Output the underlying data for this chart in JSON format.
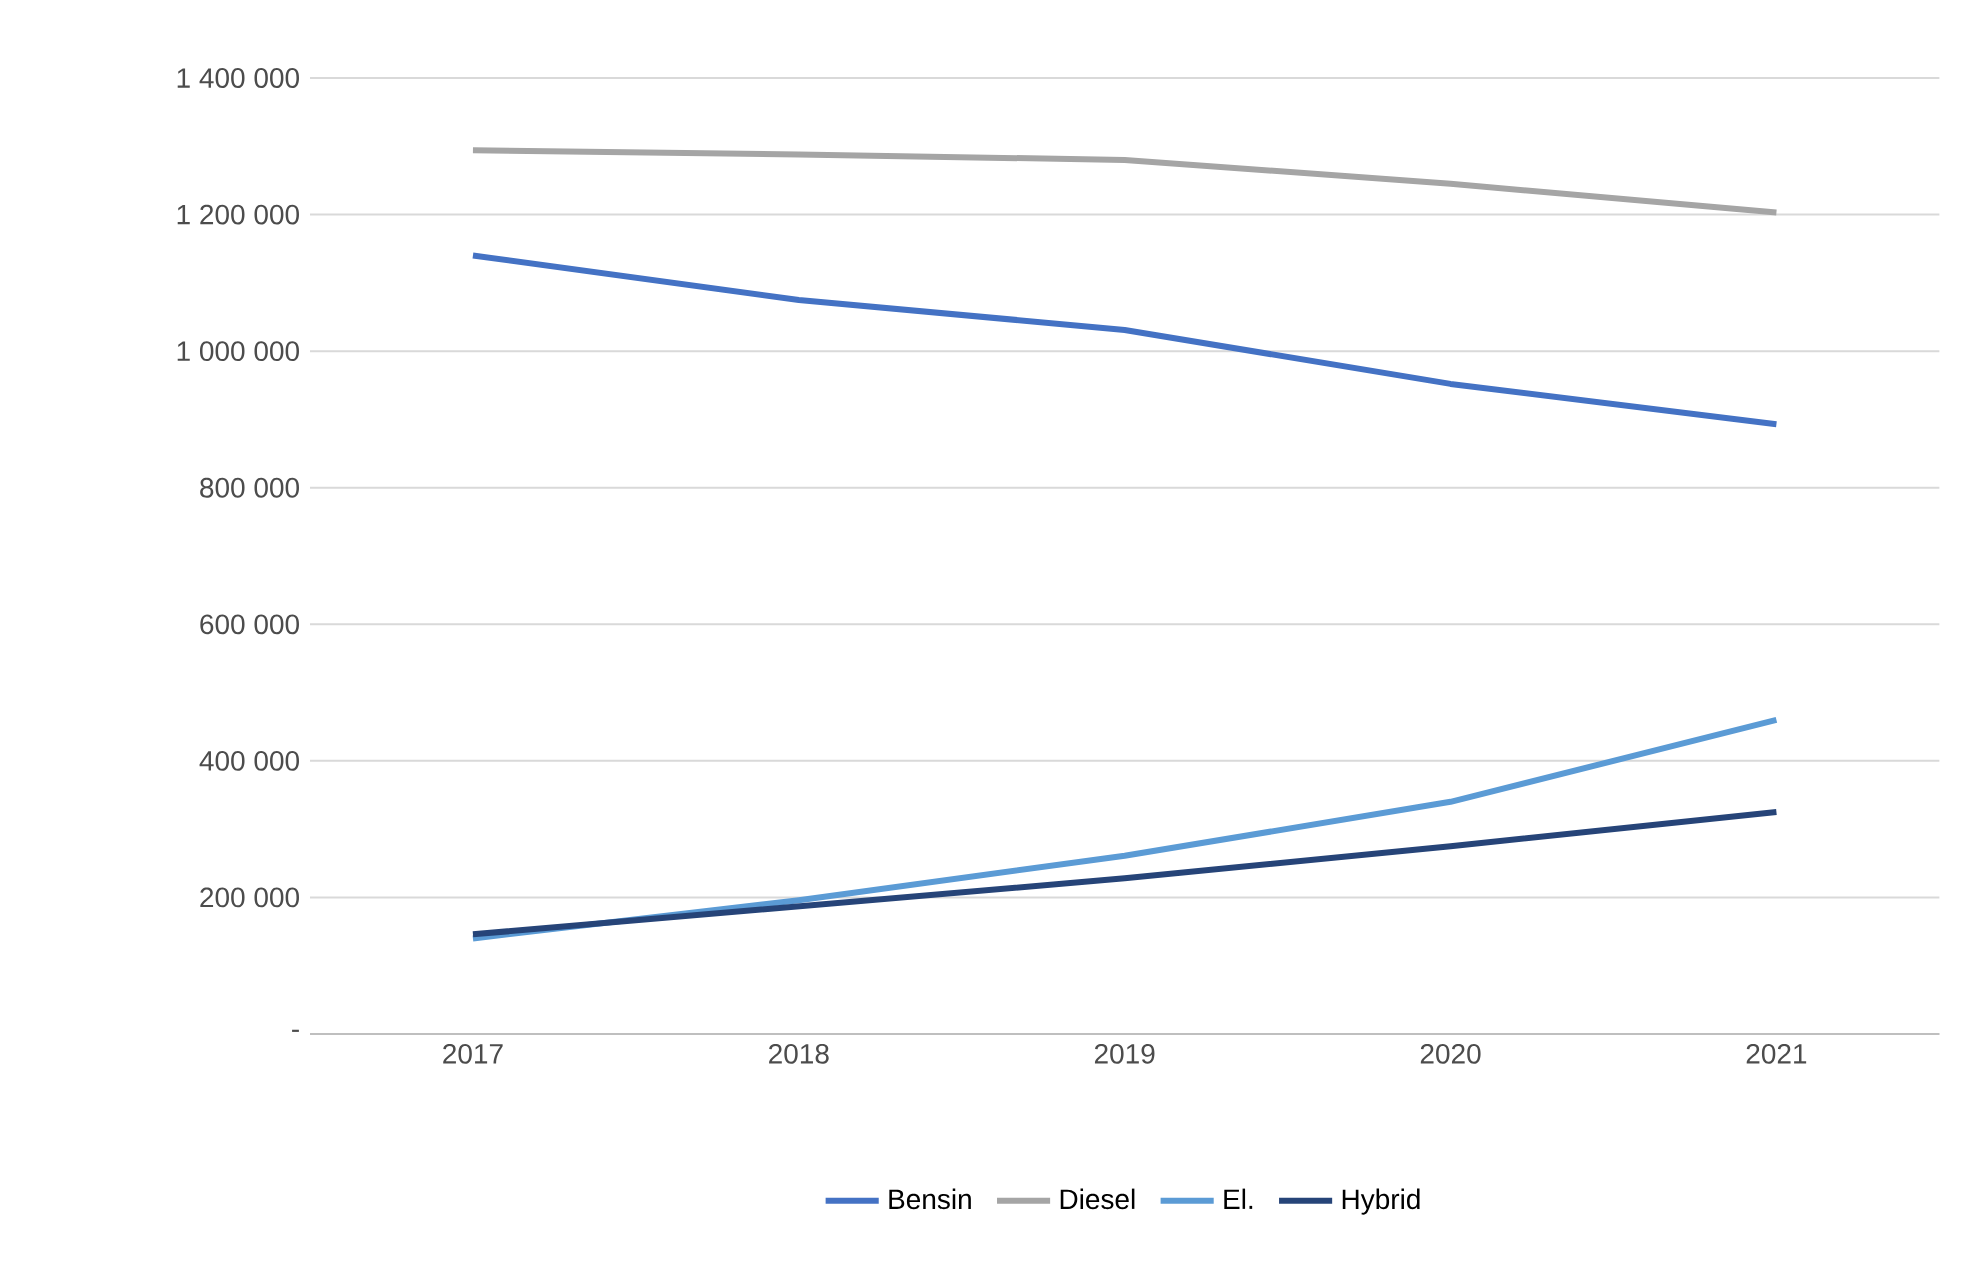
{
  "chart_data": {
    "type": "line",
    "categories": [
      "2017",
      "2018",
      "2019",
      "2020",
      "2021"
    ],
    "series": [
      {
        "name": "Bensin",
        "color": "#4472c4",
        "values": [
          1140000,
          1075000,
          1031000,
          952000,
          893000
        ]
      },
      {
        "name": "Diesel",
        "color": "#a5a5a5",
        "values": [
          1294000,
          1288000,
          1280000,
          1245000,
          1203000
        ]
      },
      {
        "name": "El.",
        "color": "#5b9bd5",
        "values": [
          140000,
          196000,
          261000,
          340000,
          460000
        ]
      },
      {
        "name": "Hybrid",
        "color": "#264478",
        "values": [
          146000,
          187000,
          228000,
          275000,
          325000
        ]
      }
    ],
    "ylim": [
      0,
      1400000
    ],
    "yticks": [
      {
        "value": 0,
        "label": "-"
      },
      {
        "value": 200000,
        "label": "200 000"
      },
      {
        "value": 400000,
        "label": "400 000"
      },
      {
        "value": 600000,
        "label": "600 000"
      },
      {
        "value": 800000,
        "label": "800 000"
      },
      {
        "value": 1000000,
        "label": "1 000 000"
      },
      {
        "value": 1200000,
        "label": "1 200 000"
      },
      {
        "value": 1400000,
        "label": "1 400 000"
      }
    ],
    "grid": "y",
    "legend": "bottom",
    "marker": "none",
    "line_style": "solid"
  }
}
